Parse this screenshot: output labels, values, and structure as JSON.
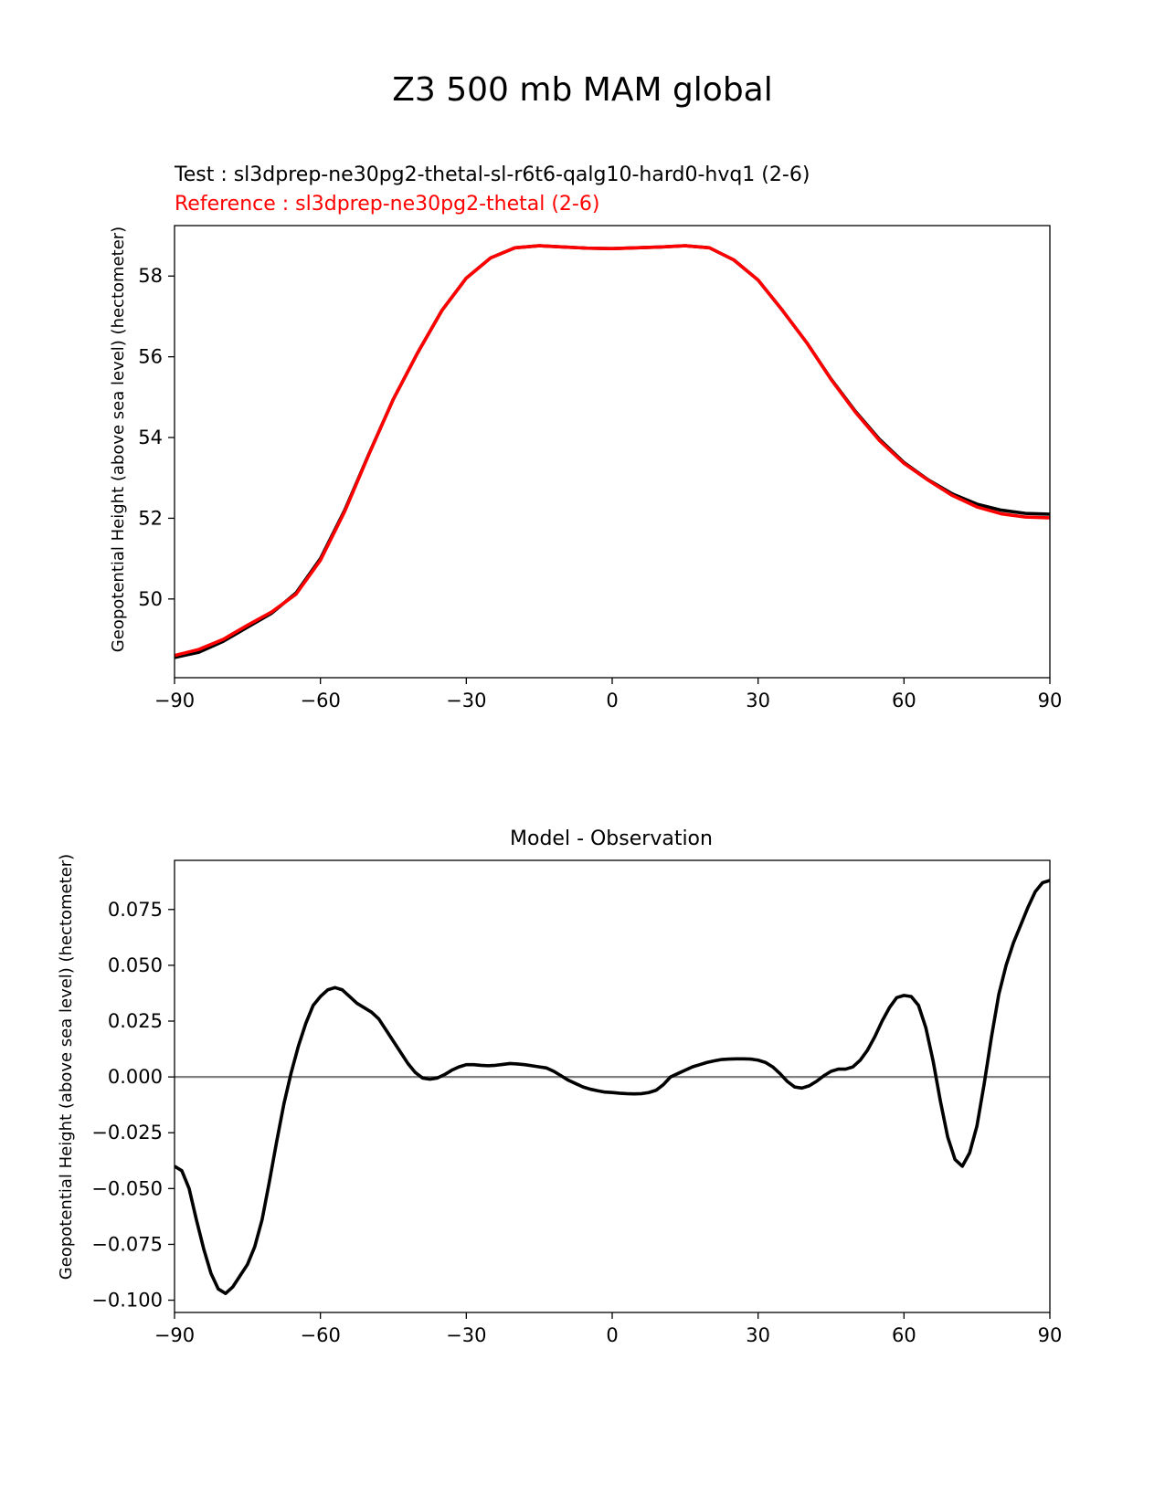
{
  "figure": {
    "title": "Z3 500 mb MAM global"
  },
  "chart_data": [
    {
      "type": "line",
      "test_label": "Test : sl3dprep-ne30pg2-thetal-sl-r6t6-qalg10-hard0-hvq1 (2-6)",
      "reference_label": "Reference : sl3dprep-ne30pg2-thetal (2-6)",
      "xlabel": "",
      "ylabel": "Geopotential Height (above sea level) (hectometer)",
      "xlim": [
        -90,
        90
      ],
      "ylim": [
        48.05,
        59.25
      ],
      "xticks": [
        -90,
        -60,
        -30,
        0,
        30,
        60,
        90
      ],
      "xtick_labels": [
        "−90",
        "−60",
        "−30",
        "0",
        "30",
        "60",
        "90"
      ],
      "yticks": [
        50,
        52,
        54,
        56,
        58
      ],
      "ytick_labels": [
        "50",
        "52",
        "54",
        "56",
        "58"
      ],
      "grid": false,
      "colors": {
        "test": "#000000",
        "reference": "#ff0000"
      },
      "series": [
        {
          "name": "Test : sl3dprep-ne30pg2-thetal-sl-r6t6-qalg10-hard0-hvq1 (2-6)",
          "color": "#000000",
          "x": [
            -90,
            -85,
            -80,
            -75,
            -70,
            -65,
            -60,
            -55,
            -50,
            -45,
            -40,
            -35,
            -30,
            -25,
            -20,
            -15,
            -10,
            -5,
            0,
            5,
            10,
            15,
            20,
            25,
            30,
            35,
            40,
            45,
            50,
            55,
            60,
            65,
            70,
            75,
            80,
            85,
            90
          ],
          "y": [
            48.55,
            48.68,
            48.95,
            49.3,
            49.65,
            50.15,
            51.0,
            52.2,
            53.6,
            54.95,
            56.1,
            57.15,
            57.95,
            58.45,
            58.7,
            58.75,
            58.72,
            58.69,
            58.68,
            58.7,
            58.72,
            58.75,
            58.7,
            58.4,
            57.9,
            57.15,
            56.35,
            55.45,
            54.65,
            53.95,
            53.38,
            52.95,
            52.6,
            52.35,
            52.2,
            52.12,
            52.1
          ]
        },
        {
          "name": "Reference : sl3dprep-ne30pg2-thetal (2-6)",
          "color": "#ff0000",
          "x": [
            -90,
            -85,
            -80,
            -75,
            -70,
            -65,
            -60,
            -55,
            -50,
            -45,
            -40,
            -35,
            -30,
            -25,
            -20,
            -15,
            -10,
            -5,
            0,
            5,
            10,
            15,
            20,
            25,
            30,
            35,
            40,
            45,
            50,
            55,
            60,
            65,
            70,
            75,
            80,
            85,
            90
          ],
          "y": [
            48.6,
            48.75,
            49.0,
            49.35,
            49.68,
            50.12,
            50.96,
            52.17,
            53.59,
            54.95,
            56.1,
            57.15,
            57.95,
            58.45,
            58.7,
            58.75,
            58.72,
            58.69,
            58.68,
            58.7,
            58.72,
            58.75,
            58.7,
            58.4,
            57.9,
            57.15,
            56.35,
            55.44,
            54.63,
            53.92,
            53.36,
            52.94,
            52.56,
            52.28,
            52.11,
            52.03,
            52.01
          ]
        }
      ]
    },
    {
      "type": "line",
      "title": "Model - Observation",
      "xlabel": "",
      "ylabel": "Geopotential Height (above sea level) (hectometer)",
      "xlim": [
        -90,
        90
      ],
      "ylim": [
        -0.1055,
        0.097
      ],
      "xticks": [
        -90,
        -60,
        -30,
        0,
        30,
        60,
        90
      ],
      "xtick_labels": [
        "−90",
        "−60",
        "−30",
        "0",
        "30",
        "60",
        "90"
      ],
      "yticks": [
        -0.1,
        -0.075,
        -0.05,
        -0.025,
        0.0,
        0.025,
        0.05,
        0.075
      ],
      "ytick_labels": [
        "−0.100",
        "−0.075",
        "−0.050",
        "−0.025",
        "0.000",
        "0.025",
        "0.050",
        "0.075"
      ],
      "grid": false,
      "zero_line_color": "#808080",
      "series": [
        {
          "color": "#000000",
          "x": [
            -90,
            -88.5,
            -87,
            -85.5,
            -84,
            -82.5,
            -81,
            -79.5,
            -78,
            -76.5,
            -75,
            -73.5,
            -72,
            -70.5,
            -69,
            -67.5,
            -66,
            -64.5,
            -63,
            -61.5,
            -60,
            -58.5,
            -57,
            -55.5,
            -54,
            -52.5,
            -51,
            -49.5,
            -48,
            -46.5,
            -45,
            -43.5,
            -42,
            -40.5,
            -39,
            -37.5,
            -36,
            -34.5,
            -33,
            -31.5,
            -30,
            -28.5,
            -27,
            -25.5,
            -24,
            -22.5,
            -21,
            -19.5,
            -18,
            -16.5,
            -15,
            -13.5,
            -12,
            -10.5,
            -9,
            -7.5,
            -6,
            -4.5,
            -3,
            -1.5,
            0,
            1.5,
            3,
            4.5,
            6,
            7.5,
            9,
            10.5,
            12,
            13.5,
            15,
            16.5,
            18,
            19.5,
            21,
            22.5,
            24,
            25.5,
            27,
            28.5,
            30,
            31.5,
            33,
            34.5,
            36,
            37.5,
            39,
            40.5,
            42,
            43.5,
            45,
            46.5,
            48,
            49.5,
            51,
            52.5,
            54,
            55.5,
            57,
            58.5,
            60,
            61.5,
            63,
            64.5,
            66,
            67.5,
            69,
            70.5,
            72,
            73.5,
            75,
            76.5,
            78,
            79.5,
            81,
            82.5,
            84,
            85.5,
            87,
            88.5,
            90
          ],
          "y": [
            -0.04,
            -0.042,
            -0.05,
            -0.064,
            -0.077,
            -0.088,
            -0.095,
            -0.097,
            -0.094,
            -0.089,
            -0.084,
            -0.076,
            -0.064,
            -0.047,
            -0.029,
            -0.012,
            0.002,
            0.014,
            0.024,
            0.032,
            0.036,
            0.039,
            0.04,
            0.039,
            0.036,
            0.033,
            0.031,
            0.029,
            0.026,
            0.021,
            0.016,
            0.011,
            0.006,
            0.002,
            -0.0005,
            -0.001,
            -0.0005,
            0.001,
            0.003,
            0.0045,
            0.0055,
            0.0055,
            0.0052,
            0.005,
            0.0052,
            0.0056,
            0.006,
            0.0058,
            0.0055,
            0.005,
            0.0045,
            0.004,
            0.0025,
            0.0005,
            -0.0015,
            -0.003,
            -0.0045,
            -0.0055,
            -0.0062,
            -0.0068,
            -0.007,
            -0.0073,
            -0.0075,
            -0.0076,
            -0.0075,
            -0.007,
            -0.006,
            -0.0035,
            0.0,
            0.0015,
            0.003,
            0.0045,
            0.0055,
            0.0065,
            0.0072,
            0.0078,
            0.008,
            0.0081,
            0.0081,
            0.008,
            0.0075,
            0.0065,
            0.0045,
            0.0015,
            -0.002,
            -0.0045,
            -0.005,
            -0.004,
            -0.002,
            0.0005,
            0.0025,
            0.0035,
            0.0035,
            0.0045,
            0.0075,
            0.012,
            0.018,
            0.025,
            0.031,
            0.0355,
            0.0365,
            0.036,
            0.032,
            0.022,
            0.007,
            -0.011,
            -0.027,
            -0.037,
            -0.04,
            -0.034,
            -0.022,
            -0.003,
            0.018,
            0.037,
            0.05,
            0.06,
            0.068,
            0.076,
            0.083,
            0.087,
            0.088
          ]
        }
      ]
    }
  ]
}
